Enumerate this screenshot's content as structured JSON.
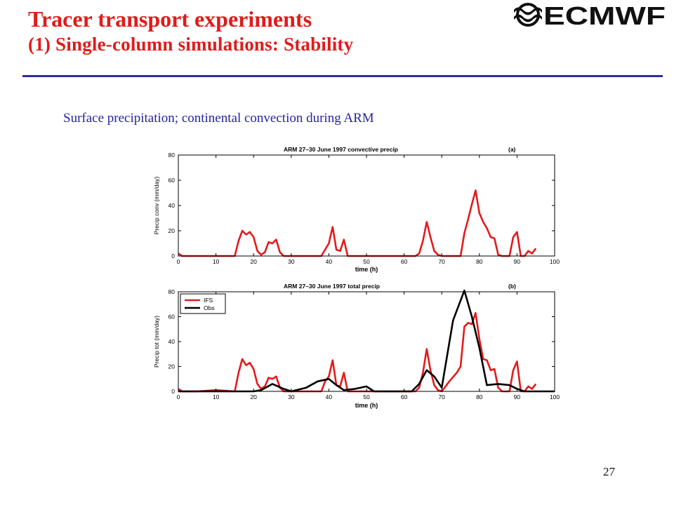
{
  "slide": {
    "title_line1": "Tracer transport experiments",
    "title_line2": "(1) Single-column  simulations:  Stability",
    "subtitle": "Surface precipitation; continental convection during ARM",
    "logo_text": "ECMWF",
    "page_number": "27"
  },
  "colors": {
    "title": "#e01b1b",
    "rule": "#2d2da0",
    "subtitle": "#2424a8",
    "ifs": "#e41a1c",
    "obs": "#000000"
  },
  "chart_data": [
    {
      "type": "line",
      "title": "ARM 27–30 June 1997 convective precip",
      "panel_label": "(a)",
      "xlabel": "time (h)",
      "ylabel": "Precip conv (mm/day)",
      "xlim": [
        0,
        100
      ],
      "ylim": [
        0,
        80
      ],
      "xticks": [
        0,
        10,
        20,
        30,
        40,
        50,
        60,
        70,
        80,
        90,
        100
      ],
      "yticks": [
        0,
        20,
        40,
        60,
        80
      ],
      "legend": [],
      "series": [
        {
          "color": "#e41a1c",
          "x": [
            0,
            1,
            2,
            5,
            10,
            15,
            16,
            17,
            18,
            19,
            20,
            21,
            22,
            23,
            24,
            25,
            26,
            27,
            28,
            30,
            35,
            38,
            39,
            40,
            41,
            42,
            43,
            44,
            45,
            50,
            55,
            60,
            63,
            64,
            65,
            66,
            67,
            68,
            69,
            70,
            75,
            76,
            77,
            78,
            79,
            80,
            81,
            82,
            83,
            84,
            85,
            86,
            88,
            89,
            90,
            91,
            92,
            93,
            94,
            95
          ],
          "y": [
            2,
            0,
            0,
            0,
            0,
            0,
            12,
            20,
            17,
            19,
            15,
            4,
            1,
            3,
            11,
            10,
            13,
            3,
            0,
            0,
            0,
            0,
            5,
            10,
            23,
            5,
            4,
            13,
            0,
            0,
            0,
            0,
            0,
            2,
            12,
            27,
            15,
            4,
            1,
            0,
            0,
            18,
            29,
            41,
            52,
            34,
            27,
            22,
            15,
            14,
            1,
            0,
            0,
            15,
            19,
            0,
            0,
            4,
            2,
            6
          ]
        }
      ]
    },
    {
      "type": "line",
      "title": "ARM 27–30 June 1997 total precip",
      "panel_label": "(b)",
      "xlabel": "time (h)",
      "ylabel": "Precip tot (mm/day)",
      "xlim": [
        0,
        100
      ],
      "ylim": [
        0,
        80
      ],
      "xticks": [
        0,
        10,
        20,
        30,
        40,
        50,
        60,
        70,
        80,
        90,
        100
      ],
      "yticks": [
        0,
        20,
        40,
        60,
        80
      ],
      "legend": [
        "IFS",
        "Obs"
      ],
      "series": [
        {
          "name": "IFS",
          "color": "#e41a1c",
          "x": [
            0,
            1,
            2,
            5,
            10,
            15,
            16,
            17,
            18,
            19,
            20,
            21,
            22,
            23,
            24,
            25,
            26,
            27,
            28,
            30,
            35,
            38,
            39,
            40,
            41,
            42,
            43,
            44,
            45,
            50,
            55,
            60,
            63,
            64,
            65,
            66,
            67,
            68,
            69,
            70,
            72,
            74,
            75,
            76,
            77,
            78,
            79,
            80,
            81,
            82,
            83,
            84,
            85,
            86,
            88,
            89,
            90,
            91,
            92,
            93,
            94,
            95
          ],
          "y": [
            2,
            0,
            0,
            0,
            1,
            0,
            15,
            26,
            21,
            23,
            18,
            6,
            2,
            4,
            11,
            10,
            12,
            3,
            0,
            0,
            0,
            0,
            8,
            12,
            25,
            5,
            4,
            15,
            0,
            0,
            0,
            0,
            0,
            3,
            15,
            34,
            17,
            5,
            1,
            0,
            8,
            15,
            20,
            52,
            55,
            54,
            63,
            42,
            26,
            25,
            17,
            18,
            3,
            0,
            0,
            17,
            24,
            0,
            0,
            4,
            2,
            6
          ]
        },
        {
          "name": "Obs",
          "color": "#000000",
          "x": [
            0,
            5,
            10,
            15,
            20,
            22,
            25,
            28,
            30,
            34,
            37,
            40,
            42,
            44,
            47,
            50,
            52,
            55,
            60,
            62,
            64,
            66,
            68,
            70,
            73,
            76,
            78,
            80,
            82,
            85,
            88,
            90,
            92,
            100
          ],
          "y": [
            0,
            0,
            0,
            0,
            0,
            1,
            6,
            2,
            0,
            3,
            8,
            10,
            5,
            1,
            2,
            4,
            0,
            0,
            0,
            0,
            6,
            17,
            12,
            3,
            57,
            81,
            60,
            35,
            5,
            6,
            5,
            2,
            0,
            0
          ]
        }
      ]
    }
  ]
}
